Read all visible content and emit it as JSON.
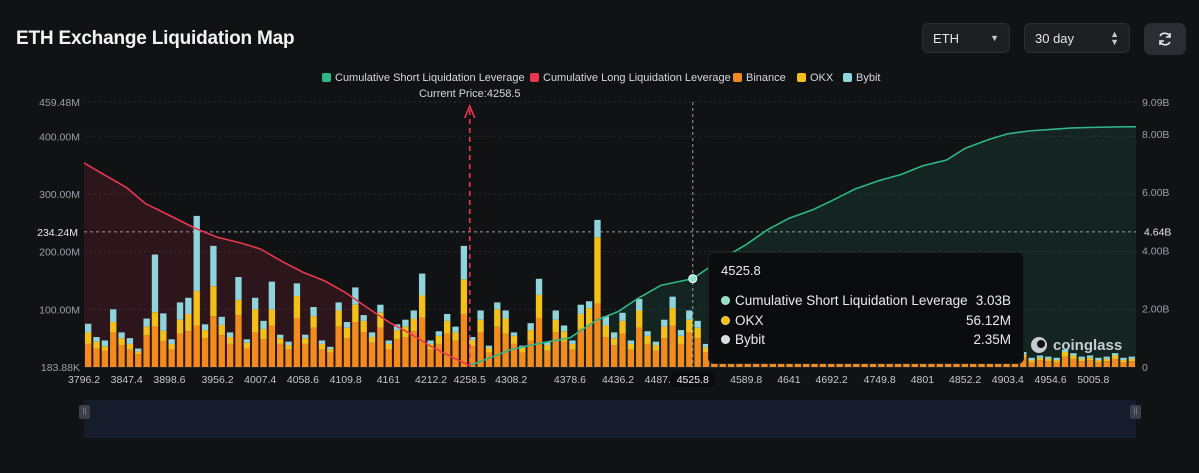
{
  "header": {
    "title": "ETH Exchange Liquidation Map",
    "coin_select": "ETH",
    "period_select": "30 day"
  },
  "colors": {
    "short": "#2fb58a",
    "long": "#e8384f",
    "binance": "#f28a1e",
    "okx": "#f3c01a",
    "bybit": "#8fd3db",
    "background": "#111214",
    "current_price_line": "#e8384f"
  },
  "tooltip": {
    "title": "4525.8",
    "rows": [
      {
        "label": "Cumulative Short Liquidation Leverage",
        "value": "3.03B",
        "color": "#8fe3c4"
      },
      {
        "label": "OKX",
        "value": "56.12M",
        "color": "#f3c01a"
      },
      {
        "label": "Bybit",
        "value": "2.35M",
        "color": "#d9dbdf"
      }
    ]
  },
  "watermark": "coinglass",
  "current_price_label": "Current Price:4258.5",
  "chart_data": {
    "type": "bar",
    "title": "ETH Exchange Liquidation Map",
    "legend": [
      "Cumulative Short Liquidation Leverage",
      "Cumulative Long Liquidation Leverage",
      "Binance",
      "OKX",
      "Bybit"
    ],
    "legend_position": "top",
    "current_price": 4258.5,
    "crosshair_x": 4525.8,
    "xlim": [
      3796.2,
      5057.0
    ],
    "x_ticks": [
      "3796.2",
      "3847.4",
      "3898.6",
      "3956.2",
      "4007.4",
      "4058.6",
      "4109.8",
      "4161",
      "4212.2",
      "4258.5",
      "4308.2",
      "4378.6",
      "4436.2",
      "4487.4",
      "4525.8",
      "4589.8",
      "4641",
      "4692.2",
      "4749.8",
      "4801",
      "4852.2",
      "4903.4",
      "4954.6",
      "5005.8"
    ],
    "y_left_ticks": [
      "183.88K",
      "100.00M",
      "200.00M",
      "234.24M",
      "300.00M",
      "400.00M",
      "459.48M"
    ],
    "y_left_range_M": [
      0.18388,
      459.48
    ],
    "y_right_ticks": [
      "0",
      "2.00B",
      "4.00B",
      "4.64B",
      "6.00B",
      "8.00B",
      "9.09B"
    ],
    "y_right_range_B": [
      0,
      9.09
    ],
    "crosshair_left": "234.24M",
    "crosshair_right": "4.64B",
    "grid": true,
    "series_bars": {
      "count": 126,
      "binance_M": [
        40,
        32,
        28,
        60,
        38,
        30,
        22,
        55,
        70,
        45,
        30,
        58,
        62,
        72,
        50,
        88,
        55,
        40,
        90,
        32,
        60,
        48,
        72,
        40,
        30,
        85,
        40,
        68,
        30,
        25,
        70,
        50,
        78,
        60,
        42,
        68,
        30,
        48,
        52,
        62,
        86,
        30,
        40,
        58,
        46,
        92,
        36,
        60,
        25,
        70,
        58,
        40,
        25,
        46,
        85,
        28,
        60,
        44,
        30,
        66,
        72,
        110,
        52,
        38,
        58,
        30,
        68,
        40,
        28,
        50,
        72,
        40,
        60,
        50,
        26,
        50,
        28,
        40,
        20,
        12,
        16,
        22,
        14,
        20,
        18,
        40,
        15,
        12,
        28,
        20,
        15,
        12,
        24,
        10,
        8,
        14,
        26,
        12,
        10,
        8,
        20,
        10,
        16,
        8,
        14,
        10,
        8,
        12,
        10,
        8,
        14,
        10,
        16,
        8,
        12,
        10,
        8,
        18,
        14,
        10,
        12,
        8,
        10,
        14,
        8,
        10
      ],
      "okx_M": [
        20,
        12,
        8,
        18,
        12,
        10,
        5,
        15,
        25,
        18,
        10,
        24,
        30,
        60,
        14,
        52,
        18,
        12,
        26,
        10,
        40,
        18,
        28,
        10,
        8,
        38,
        10,
        20,
        10,
        6,
        28,
        18,
        30,
        20,
        10,
        26,
        10,
        16,
        18,
        22,
        38,
        10,
        14,
        22,
        14,
        60,
        10,
        22,
        8,
        30,
        26,
        14,
        8,
        18,
        40,
        10,
        22,
        18,
        10,
        26,
        30,
        115,
        20,
        12,
        22,
        10,
        30,
        14,
        10,
        20,
        30,
        14,
        22,
        18,
        8,
        14,
        10,
        16,
        6,
        4,
        6,
        8,
        4,
        8,
        6,
        24,
        6,
        4,
        10,
        8,
        6,
        4,
        8,
        4,
        4,
        6,
        20,
        6,
        4,
        4,
        8,
        4,
        6,
        4,
        6,
        4,
        4,
        6,
        4,
        4,
        6,
        4,
        6,
        4,
        4,
        4,
        4,
        8,
        6,
        4,
        4,
        4,
        4,
        6,
        4,
        4
      ],
      "bybit_M": [
        15,
        8,
        10,
        22,
        10,
        10,
        5,
        14,
        100,
        30,
        8,
        30,
        28,
        130,
        10,
        70,
        14,
        8,
        40,
        6,
        20,
        14,
        48,
        6,
        6,
        22,
        6,
        16,
        6,
        4,
        14,
        10,
        30,
        10,
        8,
        14,
        6,
        10,
        12,
        14,
        38,
        6,
        8,
        12,
        10,
        58,
        6,
        16,
        4,
        12,
        14,
        6,
        4,
        12,
        28,
        6,
        16,
        10,
        6,
        16,
        12,
        30,
        16,
        10,
        14,
        6,
        20,
        8,
        6,
        12,
        20,
        10,
        16,
        12,
        6,
        12,
        6,
        10,
        4,
        4,
        4,
        6,
        4,
        6,
        4,
        70,
        4,
        4,
        8,
        6,
        4,
        4,
        6,
        4,
        4,
        4,
        4,
        4,
        4,
        4,
        4,
        4,
        4,
        4,
        4,
        4,
        4,
        4,
        4,
        4,
        4,
        4,
        4,
        4,
        4,
        4,
        4,
        4,
        4,
        4,
        4,
        4,
        4,
        4,
        4,
        4
      ]
    },
    "cumulative_long_B": {
      "x": [
        3796.2,
        3820,
        3847.4,
        3870,
        3898.6,
        3930,
        3956.2,
        3985,
        4007.4,
        4035,
        4058.6,
        4085,
        4109.8,
        4135,
        4161,
        4190,
        4212.2,
        4240,
        4258.5
      ],
      "values": [
        7.0,
        6.6,
        6.15,
        5.6,
        5.2,
        4.75,
        4.45,
        4.25,
        4.05,
        3.6,
        3.25,
        2.95,
        2.55,
        2.05,
        1.55,
        1.1,
        0.7,
        0.3,
        0.05
      ]
    },
    "cumulative_short_B": {
      "x": [
        4258.5,
        4308.2,
        4340,
        4378.6,
        4410,
        4436.2,
        4460,
        4487.4,
        4525.8,
        4560,
        4589.8,
        4615,
        4641,
        4670,
        4692.2,
        4720,
        4749.8,
        4775,
        4801,
        4830,
        4852.2,
        4880,
        4903.4,
        4930,
        4954.6,
        4980,
        5005.8,
        5040
      ],
      "values": [
        0.05,
        0.6,
        0.8,
        1.0,
        1.6,
        1.9,
        2.35,
        2.8,
        3.03,
        3.7,
        4.2,
        4.7,
        5.1,
        5.4,
        5.7,
        6.1,
        6.4,
        6.6,
        6.9,
        7.1,
        7.5,
        7.8,
        8.0,
        8.1,
        8.15,
        8.2,
        8.22,
        8.24
      ]
    }
  }
}
